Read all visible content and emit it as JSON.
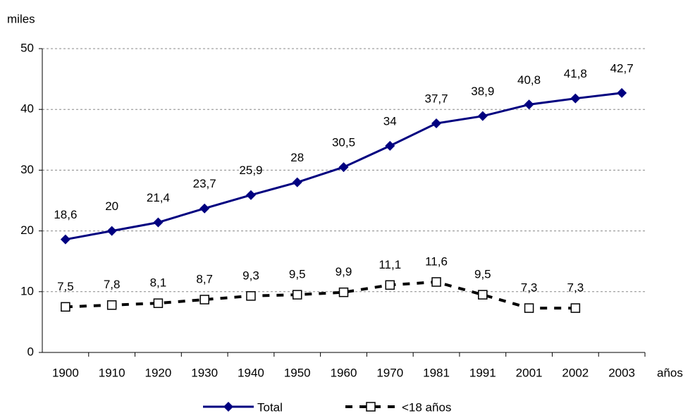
{
  "chart_data": {
    "type": "line",
    "y_axis_label": "miles",
    "x_axis_label": "años",
    "categories": [
      "1900",
      "1910",
      "1920",
      "1930",
      "1940",
      "1950",
      "1960",
      "1970",
      "1981",
      "1991",
      "2001",
      "2002",
      "2003"
    ],
    "series": [
      {
        "name": "Total",
        "color": "#000080",
        "values": [
          18.6,
          20,
          21.4,
          23.7,
          25.9,
          28,
          30.5,
          34,
          37.7,
          38.9,
          40.8,
          41.8,
          42.7
        ],
        "value_labels": [
          "18,6",
          "20",
          "21,4",
          "23,7",
          "25,9",
          "28",
          "30,5",
          "34",
          "37,7",
          "38,9",
          "40,8",
          "41,8",
          "42,7"
        ]
      },
      {
        "name": "<18 años",
        "color": "#000000",
        "values": [
          7.5,
          7.8,
          8.1,
          8.7,
          9.3,
          9.5,
          9.9,
          11.1,
          11.6,
          9.5,
          7.3,
          7.3,
          null
        ],
        "value_labels": [
          "7,5",
          "7,8",
          "8,1",
          "8,7",
          "9,3",
          "9,5",
          "9,9",
          "11,1",
          "11,6",
          "9,5",
          "7,3",
          "7,3",
          null
        ]
      }
    ],
    "ylim": [
      0,
      50
    ],
    "yticks": [
      0,
      10,
      20,
      30,
      40,
      50
    ],
    "grid": true,
    "legend": "bottom"
  }
}
